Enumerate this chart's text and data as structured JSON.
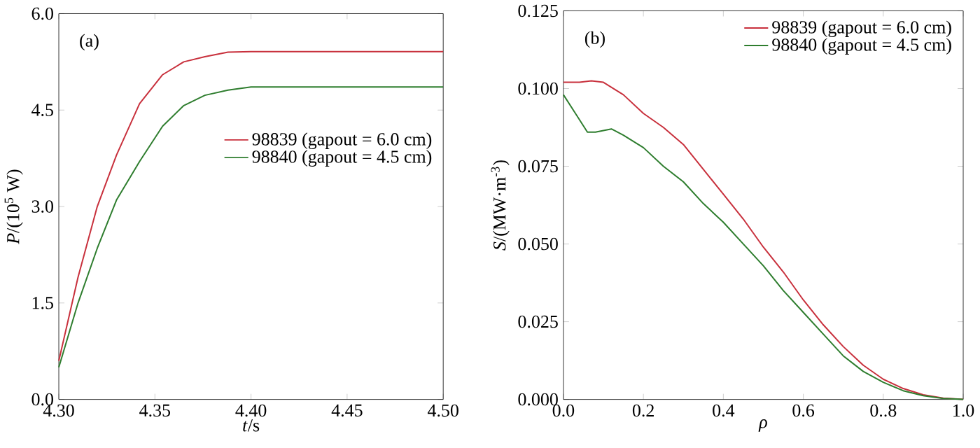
{
  "chart_data": [
    {
      "type": "line",
      "xlabel": "*t*/s",
      "ylabel": "*P*/(10$^{5}$ W)",
      "annotations": [
        "(a)"
      ],
      "legend": "right",
      "x": [
        4.3,
        4.31,
        4.32,
        4.33,
        4.342,
        4.354,
        4.365,
        4.376,
        4.388,
        4.4,
        4.5
      ],
      "xlim": [
        4.3,
        4.5
      ],
      "ylim": [
        0,
        6
      ],
      "xticks": [
        {
          "value": 4.3,
          "label": "4.30"
        },
        {
          "value": 4.35,
          "label": "4.35"
        },
        {
          "value": 4.4,
          "label": "4.40"
        },
        {
          "value": 4.45,
          "label": "4.45"
        },
        {
          "value": 4.5,
          "label": "4.50"
        }
      ],
      "yticks": [
        {
          "value": 0,
          "label": "0.0"
        },
        1.5,
        {
          "value": 3,
          "label": "3.0"
        },
        4.5,
        {
          "value": 6,
          "label": "6.0"
        }
      ],
      "series": [
        {
          "name": "98839 (gapout = 6.0 cm)",
          "color": "#c8303c",
          "values": [
            0.6,
            1.9,
            3.0,
            3.8,
            4.6,
            5.05,
            5.25,
            5.33,
            5.4,
            5.41,
            5.41
          ]
        },
        {
          "name": "98840 (gapout = 4.5 cm)",
          "color": "#2e7d2e",
          "values": [
            0.5,
            1.5,
            2.35,
            3.1,
            3.7,
            4.25,
            4.57,
            4.73,
            4.81,
            4.86,
            4.86
          ]
        }
      ]
    },
    {
      "type": "line",
      "xlabel": "*ρ*",
      "ylabel": "*S*/(MW·m$^{-3}$)",
      "annotations": [
        "(b)"
      ],
      "legend": "top right",
      "xlim": [
        0,
        1
      ],
      "ylim": [
        0,
        0.125
      ],
      "xticks": [
        {
          "value": 0,
          "label": "0.0"
        },
        0.2,
        0.4,
        0.6,
        {
          "value": 0.8,
          "label": "0..8"
        },
        {
          "value": 1,
          "label": "1.0"
        }
      ],
      "yticks": [
        {
          "value": 0,
          "label": "0.000"
        },
        0.025,
        {
          "value": 0.05,
          "label": "0.050"
        },
        0.075,
        {
          "value": 0.1,
          "label": "0.100"
        },
        0.125
      ],
      "series": [
        {
          "name": "98839 (gapout = 6.0 cm)",
          "color": "#c8303c",
          "x": [
            0,
            0.04,
            0.07,
            0.1,
            0.15,
            0.2,
            0.25,
            0.3,
            0.35,
            0.4,
            0.45,
            0.5,
            0.55,
            0.6,
            0.65,
            0.7,
            0.75,
            0.8,
            0.85,
            0.9,
            0.95,
            1.0
          ],
          "values": [
            0.102,
            0.102,
            0.1025,
            0.102,
            0.098,
            0.092,
            0.0875,
            0.082,
            0.074,
            0.066,
            0.058,
            0.049,
            0.041,
            0.032,
            0.024,
            0.017,
            0.011,
            0.0065,
            0.0035,
            0.0015,
            0.0004,
            0
          ]
        },
        {
          "name": "98840 (gapout = 4.5 cm)",
          "color": "#2e7d2e",
          "x": [
            0,
            0.03,
            0.06,
            0.08,
            0.12,
            0.15,
            0.2,
            0.25,
            0.3,
            0.35,
            0.4,
            0.45,
            0.5,
            0.55,
            0.6,
            0.65,
            0.7,
            0.75,
            0.8,
            0.85,
            0.9,
            0.95,
            1.0
          ],
          "values": [
            0.098,
            0.092,
            0.086,
            0.086,
            0.087,
            0.085,
            0.081,
            0.075,
            0.07,
            0.063,
            0.057,
            0.05,
            0.043,
            0.035,
            0.028,
            0.021,
            0.014,
            0.009,
            0.0055,
            0.0028,
            0.0012,
            0.0003,
            0
          ]
        }
      ]
    }
  ]
}
